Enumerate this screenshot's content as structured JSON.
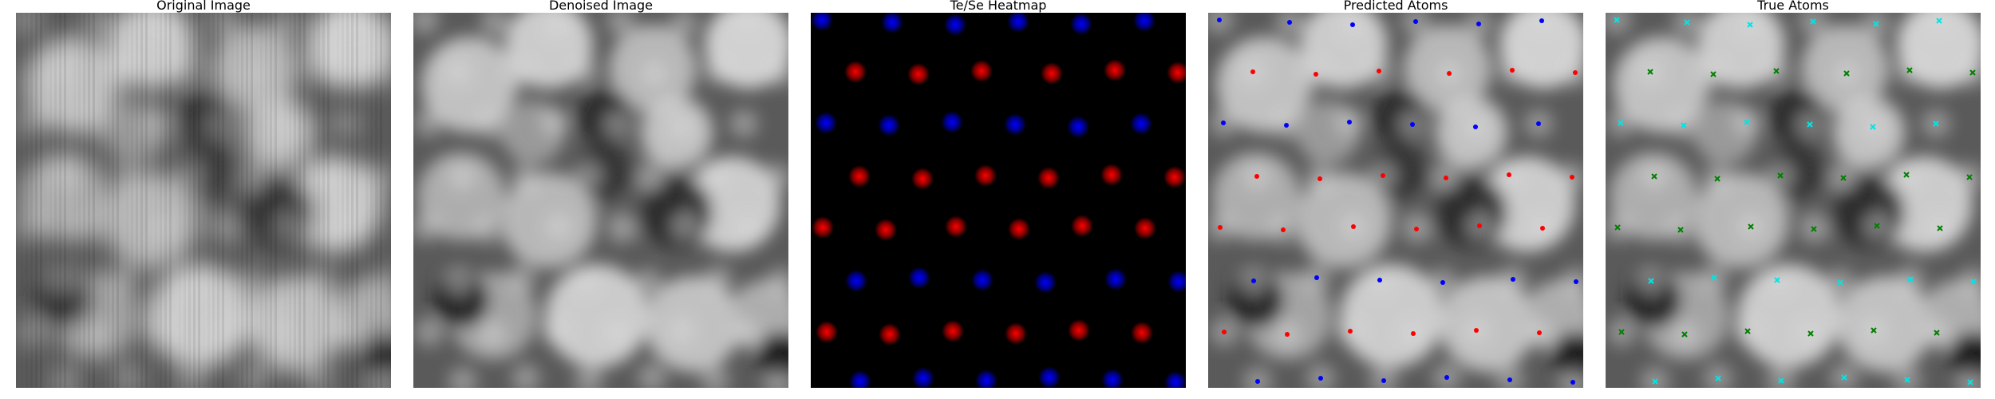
{
  "panels": [
    {
      "title": "Original Image",
      "kind": "grayscale-raw"
    },
    {
      "title": "Denoised Image",
      "kind": "grayscale-denoised"
    },
    {
      "title": "Te/Se Heatmap",
      "kind": "heatmap"
    },
    {
      "title": "Predicted Atoms",
      "kind": "predicted-overlay"
    },
    {
      "title": "True Atoms",
      "kind": "true-overlay"
    }
  ],
  "colors": {
    "te": "#ff0000",
    "se": "#0000ff",
    "true_a": "#00e5e5",
    "true_b": "#008000",
    "heatmap_background": "#000000"
  },
  "legend_markers": {
    "predicted": "dots colored red/blue by species",
    "true": "cross markers colored cyan/green by species"
  }
}
